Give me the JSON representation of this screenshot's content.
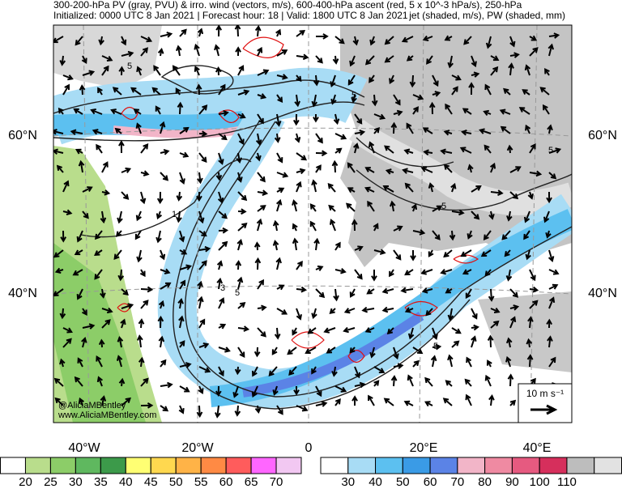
{
  "header": {
    "line1": "300-200-hPa PV (gray, PVU) & irro. wind (vectors, m/s), 600-400-hPa ascent (red, 5 x 10^-3 hPa/s), 250-hPa",
    "line2_left": "Initialized: 0000 UTC 8 Jan 2021 | Forecast hour: 18 | Valid: 1800 UTC 8 Jan 2021",
    "line2_right": "jet (shaded, m/s), PW (shaded, mm)"
  },
  "map": {
    "lat_labels": [
      "60°N",
      "40°N"
    ],
    "lon_labels": [
      "40°W",
      "20°W",
      "0",
      "20°E",
      "40°E"
    ],
    "credit": [
      "@AliciaMBentley",
      "www.AliciaMBentley.com"
    ],
    "reference_vector": "10 m s⁻¹",
    "contour_labels": [
      "5",
      "5",
      "5",
      "5",
      "1",
      "3",
      "5",
      "5"
    ]
  },
  "pw_colorbar": {
    "labels": [
      "20",
      "25",
      "30",
      "35",
      "40",
      "45",
      "50",
      "55",
      "60",
      "65",
      "70"
    ],
    "colors": [
      "#ffffff",
      "#b9dd8c",
      "#8ccd68",
      "#5fb85f",
      "#3c9a4a",
      "#ffff73",
      "#ffd84f",
      "#ffb347",
      "#ff8a44",
      "#ff5c5c",
      "#ff66ff",
      "#f2c8f2"
    ]
  },
  "jet_colorbar": {
    "labels": [
      "30",
      "40",
      "50",
      "60",
      "70",
      "80",
      "90",
      "100",
      "110"
    ],
    "colors": [
      "#ffffff",
      "#a8dcf5",
      "#5cc0f0",
      "#3a9be6",
      "#5b83e6",
      "#f2b5c8",
      "#ef8aa2",
      "#e65a80",
      "#d62f5c",
      "#bdbdbd",
      "#e2e2e2"
    ]
  }
}
